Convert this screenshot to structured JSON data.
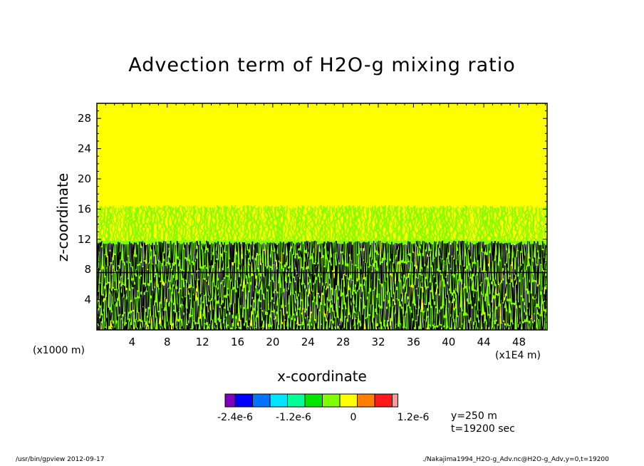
{
  "chart_data": {
    "type": "heatmap",
    "title": "Advection term of H2O-g mixing ratio",
    "xlabel": "x-coordinate",
    "ylabel": "z-coordinate",
    "x_unit_left": "(x1000 m)",
    "x_unit_right": "(x1E4 m)",
    "xlim": [
      0,
      51.2
    ],
    "ylim": [
      0,
      30
    ],
    "x_ticks": [
      4,
      8,
      12,
      16,
      20,
      24,
      28,
      32,
      36,
      40,
      44,
      48
    ],
    "y_ticks": [
      4,
      8,
      12,
      16,
      20,
      24,
      28
    ],
    "layers": [
      {
        "name": "zero region",
        "z_range": [
          16.5,
          30
        ],
        "color": "#ffff00"
      },
      {
        "name": "mixed yellow-green region",
        "z_range": [
          11.8,
          16.5
        ],
        "colors": [
          "#ffff00",
          "#80ff00"
        ]
      },
      {
        "name": "dense contour region",
        "z_range": [
          0,
          11.8
        ],
        "colors": [
          "#000000",
          "#80ff00",
          "#ffff00"
        ]
      }
    ],
    "colorbar": {
      "colors": [
        "#7f00bf",
        "#0000ff",
        "#0073ff",
        "#00e5ff",
        "#00ff99",
        "#00e600",
        "#80ff00",
        "#ffff00",
        "#ff8000",
        "#ff1a1a",
        "#ff9999"
      ],
      "tick_labels": [
        "-2.4e-6",
        "-1.2e-6",
        "0",
        "1.2e-6"
      ]
    }
  },
  "slice_info": {
    "y": "y=250 m",
    "t": "t=19200 sec"
  },
  "footer": {
    "left": "/usr/bin/gpview   2012-09-17",
    "right": "./Nakajima1994_H2O-g_Adv.nc@H2O-g_Adv,y=0,t=19200"
  }
}
